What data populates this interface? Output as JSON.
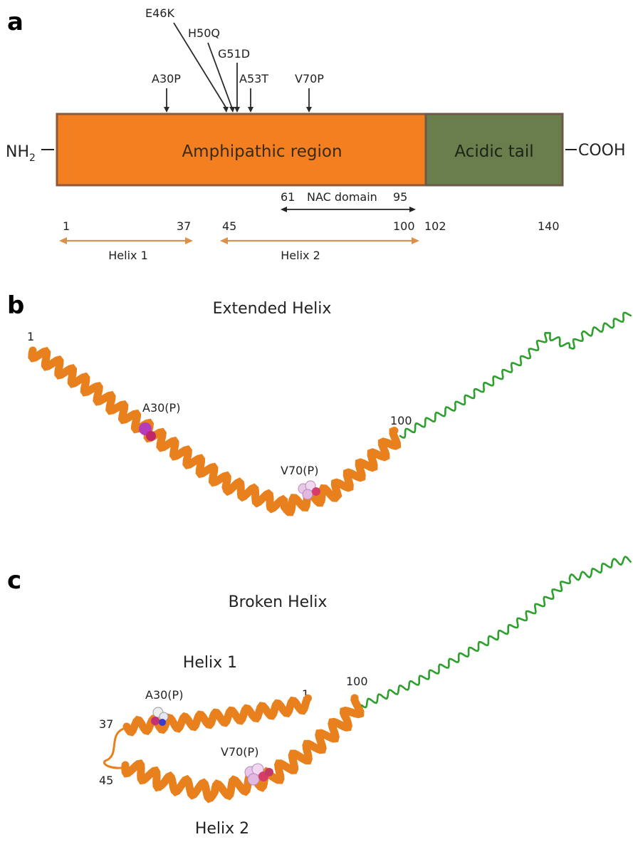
{
  "panel_a": {
    "letter": "a",
    "mutations": [
      {
        "label": "E46K",
        "residue": 46
      },
      {
        "label": "H50Q",
        "residue": 50
      },
      {
        "label": "G51D",
        "residue": 51
      },
      {
        "label": "A53T",
        "residue": 53
      },
      {
        "label": "A30P",
        "residue": 30
      },
      {
        "label": "V70P",
        "residue": 70
      }
    ],
    "n_terminus": "NH",
    "n_terminus_sub": "2",
    "c_terminus": "COOH",
    "regions": [
      {
        "name": "Amphipathic region",
        "start": 1,
        "end": 100,
        "color": "#f47f20"
      },
      {
        "name": "Acidic tail",
        "start": 101,
        "end": 140,
        "color": "#6a7d4d"
      }
    ],
    "nac_domain": {
      "label": "NAC domain",
      "start_label": "61",
      "end_label": "95"
    },
    "positions": [
      "1",
      "37",
      "45",
      "100",
      "102",
      "140"
    ],
    "helix1": {
      "label": "Helix 1"
    },
    "helix2": {
      "label": "Helix 2"
    }
  },
  "panel_b": {
    "letter": "b",
    "title": "Extended Helix",
    "start_label": "1",
    "end_label": "100",
    "mut1": "A30(P)",
    "mut2": "V70(P)"
  },
  "panel_c": {
    "letter": "c",
    "title": "Broken Helix",
    "helix1_label": "Helix 1",
    "helix2_label": "Helix 2",
    "mut1": "A30(P)",
    "mut2": "V70(P)",
    "label_1": "1",
    "label_100": "100",
    "label_37": "37",
    "label_45": "45"
  },
  "colors": {
    "helix": "#e8801e",
    "coil": "#2fa02f",
    "amphipathic": "#f47f20",
    "acidic": "#6a7d4d",
    "arrow_orange": "#d9924e"
  }
}
